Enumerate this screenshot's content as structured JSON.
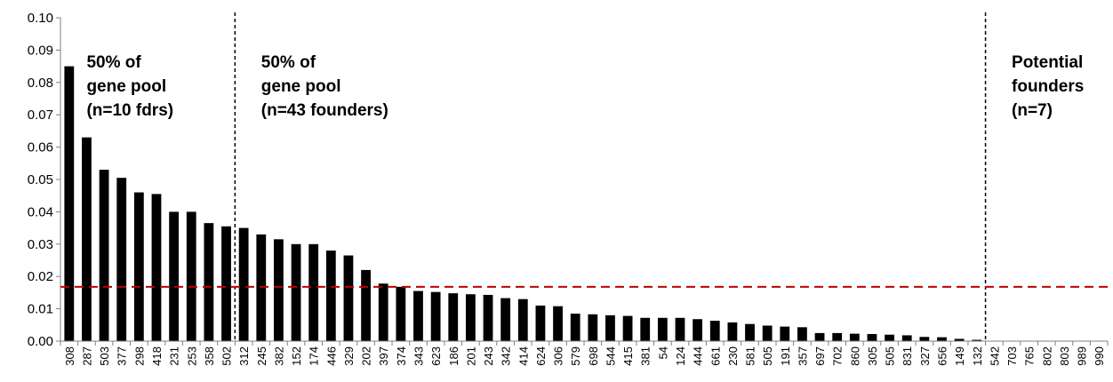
{
  "chart_data": {
    "type": "bar",
    "categories": [
      "308",
      "287",
      "503",
      "377",
      "298",
      "418",
      "231",
      "253",
      "358",
      "502",
      "312",
      "245",
      "382",
      "152",
      "174",
      "446",
      "329",
      "202",
      "397",
      "374",
      "343",
      "623",
      "186",
      "201",
      "243",
      "342",
      "414",
      "624",
      "306",
      "579",
      "698",
      "544",
      "415",
      "381",
      "54",
      "124",
      "444",
      "661",
      "230",
      "581",
      "505",
      "191",
      "357",
      "697",
      "702",
      "860",
      "305",
      "505",
      "831",
      "327",
      "656",
      "149",
      "132",
      "542",
      "703",
      "765",
      "802",
      "803",
      "989",
      "990"
    ],
    "values": [
      0.085,
      0.063,
      0.053,
      0.0505,
      0.046,
      0.0455,
      0.04,
      0.04,
      0.0365,
      0.0355,
      0.035,
      0.033,
      0.0315,
      0.03,
      0.03,
      0.028,
      0.0265,
      0.022,
      0.0178,
      0.0168,
      0.0155,
      0.0152,
      0.0148,
      0.0145,
      0.0143,
      0.0133,
      0.013,
      0.011,
      0.0108,
      0.0085,
      0.0083,
      0.008,
      0.0078,
      0.0072,
      0.0072,
      0.0072,
      0.0068,
      0.0063,
      0.0058,
      0.0053,
      0.0048,
      0.0045,
      0.0043,
      0.0025,
      0.0025,
      0.0023,
      0.0022,
      0.002,
      0.0018,
      0.0013,
      0.0012,
      0.0007,
      0.0004,
      0,
      0,
      0,
      0,
      0,
      0,
      0
    ],
    "ylim": [
      0,
      0.1
    ],
    "yticks": [
      "0.00",
      "0.01",
      "0.02",
      "0.03",
      "0.04",
      "0.05",
      "0.06",
      "0.07",
      "0.08",
      "0.09",
      "0.10"
    ],
    "threshold": 0.0168,
    "threshold_color": "#C00000",
    "bar_color": "#000000",
    "divider_after_index": [
      9,
      52
    ],
    "annotations": [
      {
        "lines": [
          "50% of",
          "gene pool",
          "(n=10 fdrs)"
        ]
      },
      {
        "lines": [
          "50% of",
          "gene pool",
          "(n=43 founders)"
        ]
      },
      {
        "lines": [
          "Potential",
          "founders",
          "(n=7)"
        ]
      }
    ],
    "grid": false,
    "legend": "none"
  }
}
